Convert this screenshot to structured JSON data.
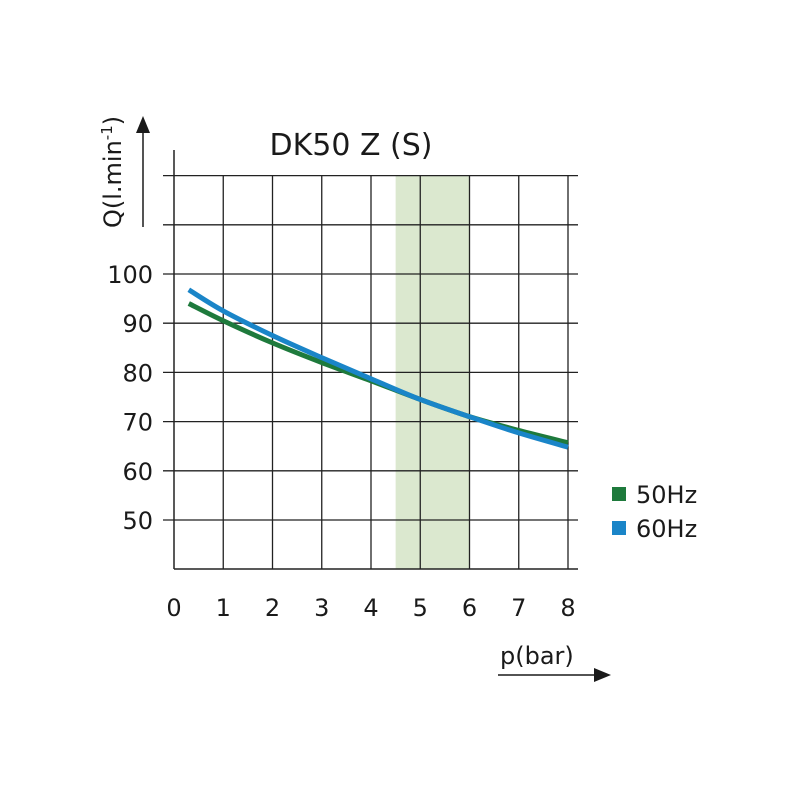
{
  "chart_data": {
    "type": "line",
    "title": "DK50 Z (S)",
    "xlabel": "p(bar)",
    "ylabel_main": "Q(l.min",
    "ylabel_sup": "-1",
    "ylabel_close": ")",
    "xlim": [
      0,
      8
    ],
    "ylim": [
      40,
      120
    ],
    "x_ticks": [
      0,
      1,
      2,
      3,
      4,
      5,
      6,
      7,
      8
    ],
    "y_ticks": [
      50,
      60,
      70,
      80,
      90,
      100
    ],
    "grid": true,
    "highlight_band": {
      "from": 4.5,
      "to": 6,
      "color": "#dbe8cf"
    },
    "legend_position": "right",
    "series": [
      {
        "name": "50Hz",
        "color": "#1e7a3c",
        "x": [
          0.3,
          1,
          2,
          3,
          4,
          5,
          6,
          7,
          8
        ],
        "y": [
          94,
          90.5,
          86,
          82,
          78.3,
          74.5,
          71,
          68.2,
          65.7
        ]
      },
      {
        "name": "60Hz",
        "color": "#1a85c8",
        "x": [
          0.3,
          1,
          2,
          3,
          4,
          5,
          6,
          7,
          8
        ],
        "y": [
          96.8,
          92.5,
          87.5,
          83,
          78.7,
          74.5,
          71,
          67.7,
          64.8
        ]
      }
    ]
  }
}
